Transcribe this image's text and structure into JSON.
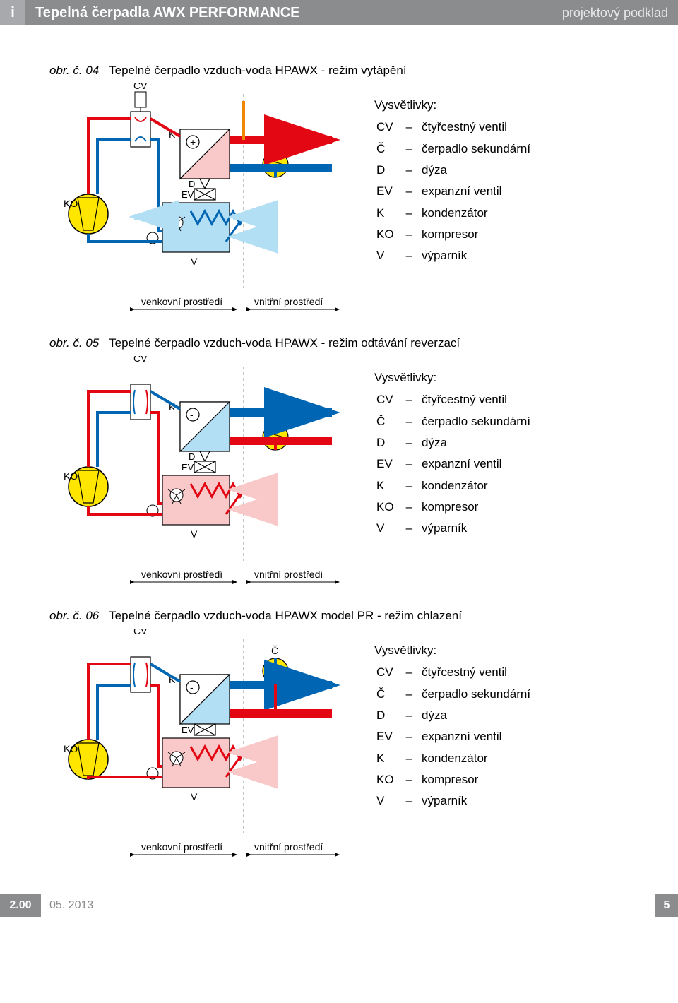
{
  "header": {
    "icon": "i",
    "title": "Tepelná čerpadla AWX PERFORMANCE",
    "subtitle": "projektový podklad"
  },
  "footer": {
    "version": "2.00",
    "date": "05. 2013",
    "page": "5"
  },
  "legend": {
    "heading": "Vysvětlivky:",
    "items": [
      {
        "sym": "CV",
        "dash": "–",
        "desc": "čtyřcestný ventil"
      },
      {
        "sym": "Č",
        "dash": "–",
        "desc": "čerpadlo sekundární"
      },
      {
        "sym": "D",
        "dash": "–",
        "desc": "dýza"
      },
      {
        "sym": "EV",
        "dash": "–",
        "desc": "expanzní ventil"
      },
      {
        "sym": "K",
        "dash": "–",
        "desc": "kondenzátor"
      },
      {
        "sym": "KO",
        "dash": "–",
        "desc": "kompresor"
      },
      {
        "sym": "V",
        "dash": "–",
        "desc": "výparník"
      }
    ]
  },
  "sections": [
    {
      "code": "obr. č. 04",
      "title": "Tepelné čerpadlo vzduch-voda  HPAWX - režim vytápění",
      "diagram": {
        "sign": "+",
        "hot": {
          "condenser": true,
          "evaporator": false
        },
        "cv_top": true,
        "show_D": true,
        "air_hot": false
      }
    },
    {
      "code": "obr. č. 05",
      "title": "Tepelné čerpadlo vzduch-voda  HPAWX - režim odtávání reverzací",
      "diagram": {
        "sign": "-",
        "hot": {
          "condenser": false,
          "evaporator": true
        },
        "cv_top": false,
        "show_D": true,
        "air_hot": true
      }
    },
    {
      "code": "obr. č. 06",
      "title": "Tepelné čerpadlo vzduch-voda  HPAWX model PR - režim chlazení",
      "diagram": {
        "sign": "-",
        "hot": {
          "condenser": false,
          "evaporator": true
        },
        "cv_top": false,
        "show_D": false,
        "air_hot": true,
        "pump_top": true
      }
    }
  ],
  "diagram_labels": {
    "CV": "CV",
    "K": "K",
    "C_hat": "Č",
    "D": "D",
    "EV": "EV",
    "KO": "KO",
    "V": "V",
    "outdoor": "venkovní prostředí",
    "indoor": "vnitřní prostředí"
  },
  "colors": {
    "red": "#e30613",
    "blue": "#0066b3",
    "lightblue": "#b3dff5",
    "lightred": "#f9c9c9",
    "orange": "#f18700",
    "yellow": "#ffe600",
    "grey": "#8a8c8e",
    "black": "#000000",
    "bg": "#ffffff"
  }
}
